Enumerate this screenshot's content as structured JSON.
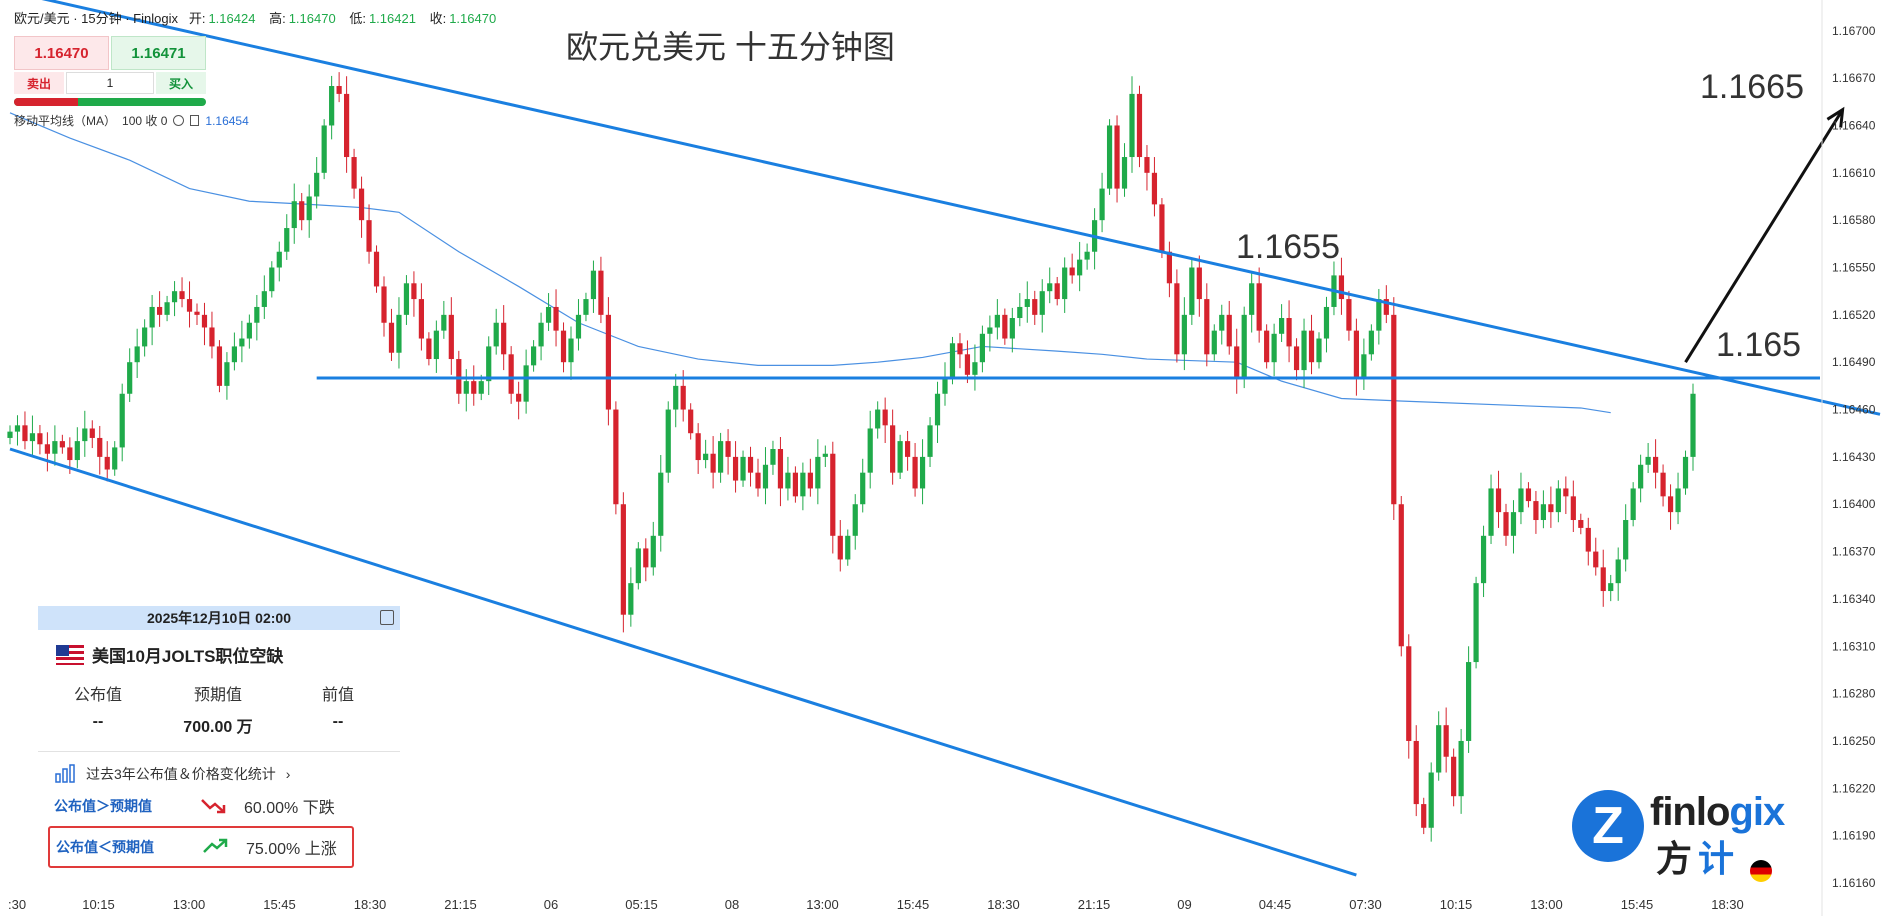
{
  "header": {
    "symbol": "欧元/美元 · 15分钟 · Finlogix",
    "open_label": "开:",
    "open": "1.16424",
    "high_label": "高:",
    "high": "1.16470",
    "low_label": "低:",
    "low": "1.16421",
    "close_label": "收:",
    "close": "1.16470"
  },
  "trade_panel": {
    "sell_price": "1.16470",
    "buy_price": "1.16471",
    "sell_label": "卖出",
    "buy_label": "买入",
    "quantity": "1"
  },
  "indicator": {
    "name": "移动平均线（MA）",
    "params": "100 收 0",
    "value": "1.16454"
  },
  "chart_data": {
    "type": "candlestick",
    "title": "欧元兑美元 十五分钟图",
    "price_ticks": [
      "1.16700",
      "1.16670",
      "1.16640",
      "1.16610",
      "1.16580",
      "1.16550",
      "1.16520",
      "1.16490",
      "1.16460",
      "1.16430",
      "1.16400",
      "1.16370",
      "1.16340",
      "1.16310",
      "1.16280",
      "1.16250",
      "1.16220",
      "1.16190",
      "1.16160"
    ],
    "ylim": [
      1.1616,
      1.1671
    ],
    "time_ticks": [
      ":30",
      "10:15",
      "13:00",
      "15:45",
      "18:30",
      "21:15",
      "06",
      "05:15",
      "08",
      "13:00",
      "15:45",
      "18:30",
      "21:15",
      "09",
      "04:45",
      "07:30",
      "10:15",
      "13:00",
      "15:45",
      "18:30"
    ],
    "moving_average": {
      "name": "MA 100",
      "color": "#4a90e2",
      "points": [
        [
          0,
          1.16648
        ],
        [
          8,
          1.16632
        ],
        [
          16,
          1.16618
        ],
        [
          24,
          1.166
        ],
        [
          32,
          1.16592
        ],
        [
          40,
          1.1659
        ],
        [
          47,
          1.16588
        ],
        [
          52,
          1.16585
        ],
        [
          60,
          1.1656
        ],
        [
          68,
          1.16538
        ],
        [
          76,
          1.16515
        ],
        [
          84,
          1.165
        ],
        [
          92,
          1.16492
        ],
        [
          100,
          1.16488
        ],
        [
          110,
          1.16488
        ],
        [
          116,
          1.1649
        ],
        [
          122,
          1.16493
        ],
        [
          130,
          1.165
        ],
        [
          140,
          1.16497
        ],
        [
          146,
          1.16495
        ],
        [
          152,
          1.16492
        ],
        [
          164,
          1.1649
        ],
        [
          170,
          1.16478
        ],
        [
          178,
          1.16467
        ],
        [
          188,
          1.16465
        ],
        [
          210,
          1.16461
        ],
        [
          214,
          1.16458
        ]
      ]
    },
    "annotations": {
      "level_1655": "1.1655",
      "level_165": "1.165",
      "target": "1.1665"
    },
    "lines": {
      "upper_channel": [
        [
          0,
          1.16725
        ],
        [
          250,
          1.16457
        ]
      ],
      "lower_channel": [
        [
          0,
          1.16435
        ],
        [
          180,
          1.16165
        ]
      ],
      "horizontal": 1.1648,
      "arrow_from": [
        224,
        1.1649
      ],
      "arrow_to": [
        245,
        1.1665
      ]
    },
    "colors": {
      "up": "#1faa4a",
      "down": "#d6232e",
      "channel": "#1a7fe0",
      "arrow": "#111111"
    },
    "candles_close": [
      1.16446,
      1.1645,
      1.1644,
      1.16445,
      1.16438,
      1.16432,
      1.1644,
      1.16436,
      1.16428,
      1.1644,
      1.16448,
      1.16442,
      1.1643,
      1.16422,
      1.16436,
      1.1647,
      1.1649,
      1.165,
      1.16512,
      1.16525,
      1.1652,
      1.16528,
      1.16535,
      1.1653,
      1.16522,
      1.1652,
      1.16512,
      1.165,
      1.16475,
      1.1649,
      1.165,
      1.16505,
      1.16515,
      1.16525,
      1.16535,
      1.1655,
      1.1656,
      1.16575,
      1.16592,
      1.1658,
      1.16595,
      1.1661,
      1.1664,
      1.16665,
      1.1666,
      1.1662,
      1.166,
      1.1658,
      1.1656,
      1.16538,
      1.16515,
      1.16496,
      1.1652,
      1.1654,
      1.1653,
      1.16505,
      1.16492,
      1.1651,
      1.1652,
      1.16492,
      1.1647,
      1.16478,
      1.1647,
      1.16478,
      1.165,
      1.16515,
      1.16495,
      1.1647,
      1.16465,
      1.16488,
      1.165,
      1.16515,
      1.16525,
      1.1651,
      1.1649,
      1.16505,
      1.1652,
      1.1653,
      1.16548,
      1.1652,
      1.1646,
      1.164,
      1.1633,
      1.1635,
      1.16372,
      1.1636,
      1.1638,
      1.1642,
      1.1646,
      1.16475,
      1.1646,
      1.16445,
      1.16428,
      1.16432,
      1.1642,
      1.1644,
      1.1643,
      1.16415,
      1.1643,
      1.1642,
      1.1641,
      1.16425,
      1.16435,
      1.1641,
      1.1642,
      1.16405,
      1.1642,
      1.1641,
      1.1643,
      1.16432,
      1.1638,
      1.16365,
      1.1638,
      1.164,
      1.1642,
      1.16448,
      1.1646,
      1.1645,
      1.1642,
      1.1644,
      1.1643,
      1.1641,
      1.1643,
      1.1645,
      1.1647,
      1.1648,
      1.16502,
      1.16495,
      1.16482,
      1.1649,
      1.16508,
      1.16512,
      1.1652,
      1.16505,
      1.16518,
      1.16525,
      1.1653,
      1.1652,
      1.16535,
      1.1654,
      1.1653,
      1.1655,
      1.16545,
      1.16555,
      1.1656,
      1.1658,
      1.166,
      1.1664,
      1.166,
      1.1662,
      1.1666,
      1.1662,
      1.1661,
      1.1659,
      1.1656,
      1.1654,
      1.16495,
      1.1652,
      1.1655,
      1.1653,
      1.16495,
      1.1651,
      1.1652,
      1.165,
      1.1648,
      1.1652,
      1.1654,
      1.1651,
      1.1649,
      1.16508,
      1.16518,
      1.165,
      1.16485,
      1.1651,
      1.1649,
      1.16505,
      1.16525,
      1.16545,
      1.1653,
      1.1651,
      1.1648,
      1.16495,
      1.1651,
      1.1653,
      1.1652,
      1.164,
      1.1631,
      1.1625,
      1.1621,
      1.16195,
      1.1623,
      1.1626,
      1.1624,
      1.16215,
      1.1625,
      1.163,
      1.1635,
      1.1638,
      1.1641,
      1.16395,
      1.1638,
      1.16395,
      1.1641,
      1.16402,
      1.1639,
      1.164,
      1.16395,
      1.1641,
      1.16405,
      1.1639,
      1.16385,
      1.1637,
      1.1636,
      1.16345,
      1.1635,
      1.16365,
      1.1639,
      1.1641,
      1.16425,
      1.1643,
      1.1642,
      1.16405,
      1.16395,
      1.1641,
      1.1643,
      1.1647
    ]
  },
  "event_panel": {
    "datetime": "2025年12月10日 02:00",
    "event_title": "美国10月JOLTS职位空缺",
    "col_actual": "公布值",
    "col_forecast": "预期值",
    "col_previous": "前值",
    "actual": "--",
    "forecast": "700.00 万",
    "previous": "--",
    "stats_link": "过去3年公布值＆价格变化统计",
    "rule_above": "公布值＞预期值",
    "rule_above_result": "60.00% 下跌",
    "rule_below": "公布值＜预期值",
    "rule_below_result": "75.00% 上涨"
  },
  "logo": {
    "mark": "Z",
    "brand_a": "finlo",
    "brand_b": "gix",
    "brand_zh_a": "方",
    "brand_zh_b": "计"
  }
}
